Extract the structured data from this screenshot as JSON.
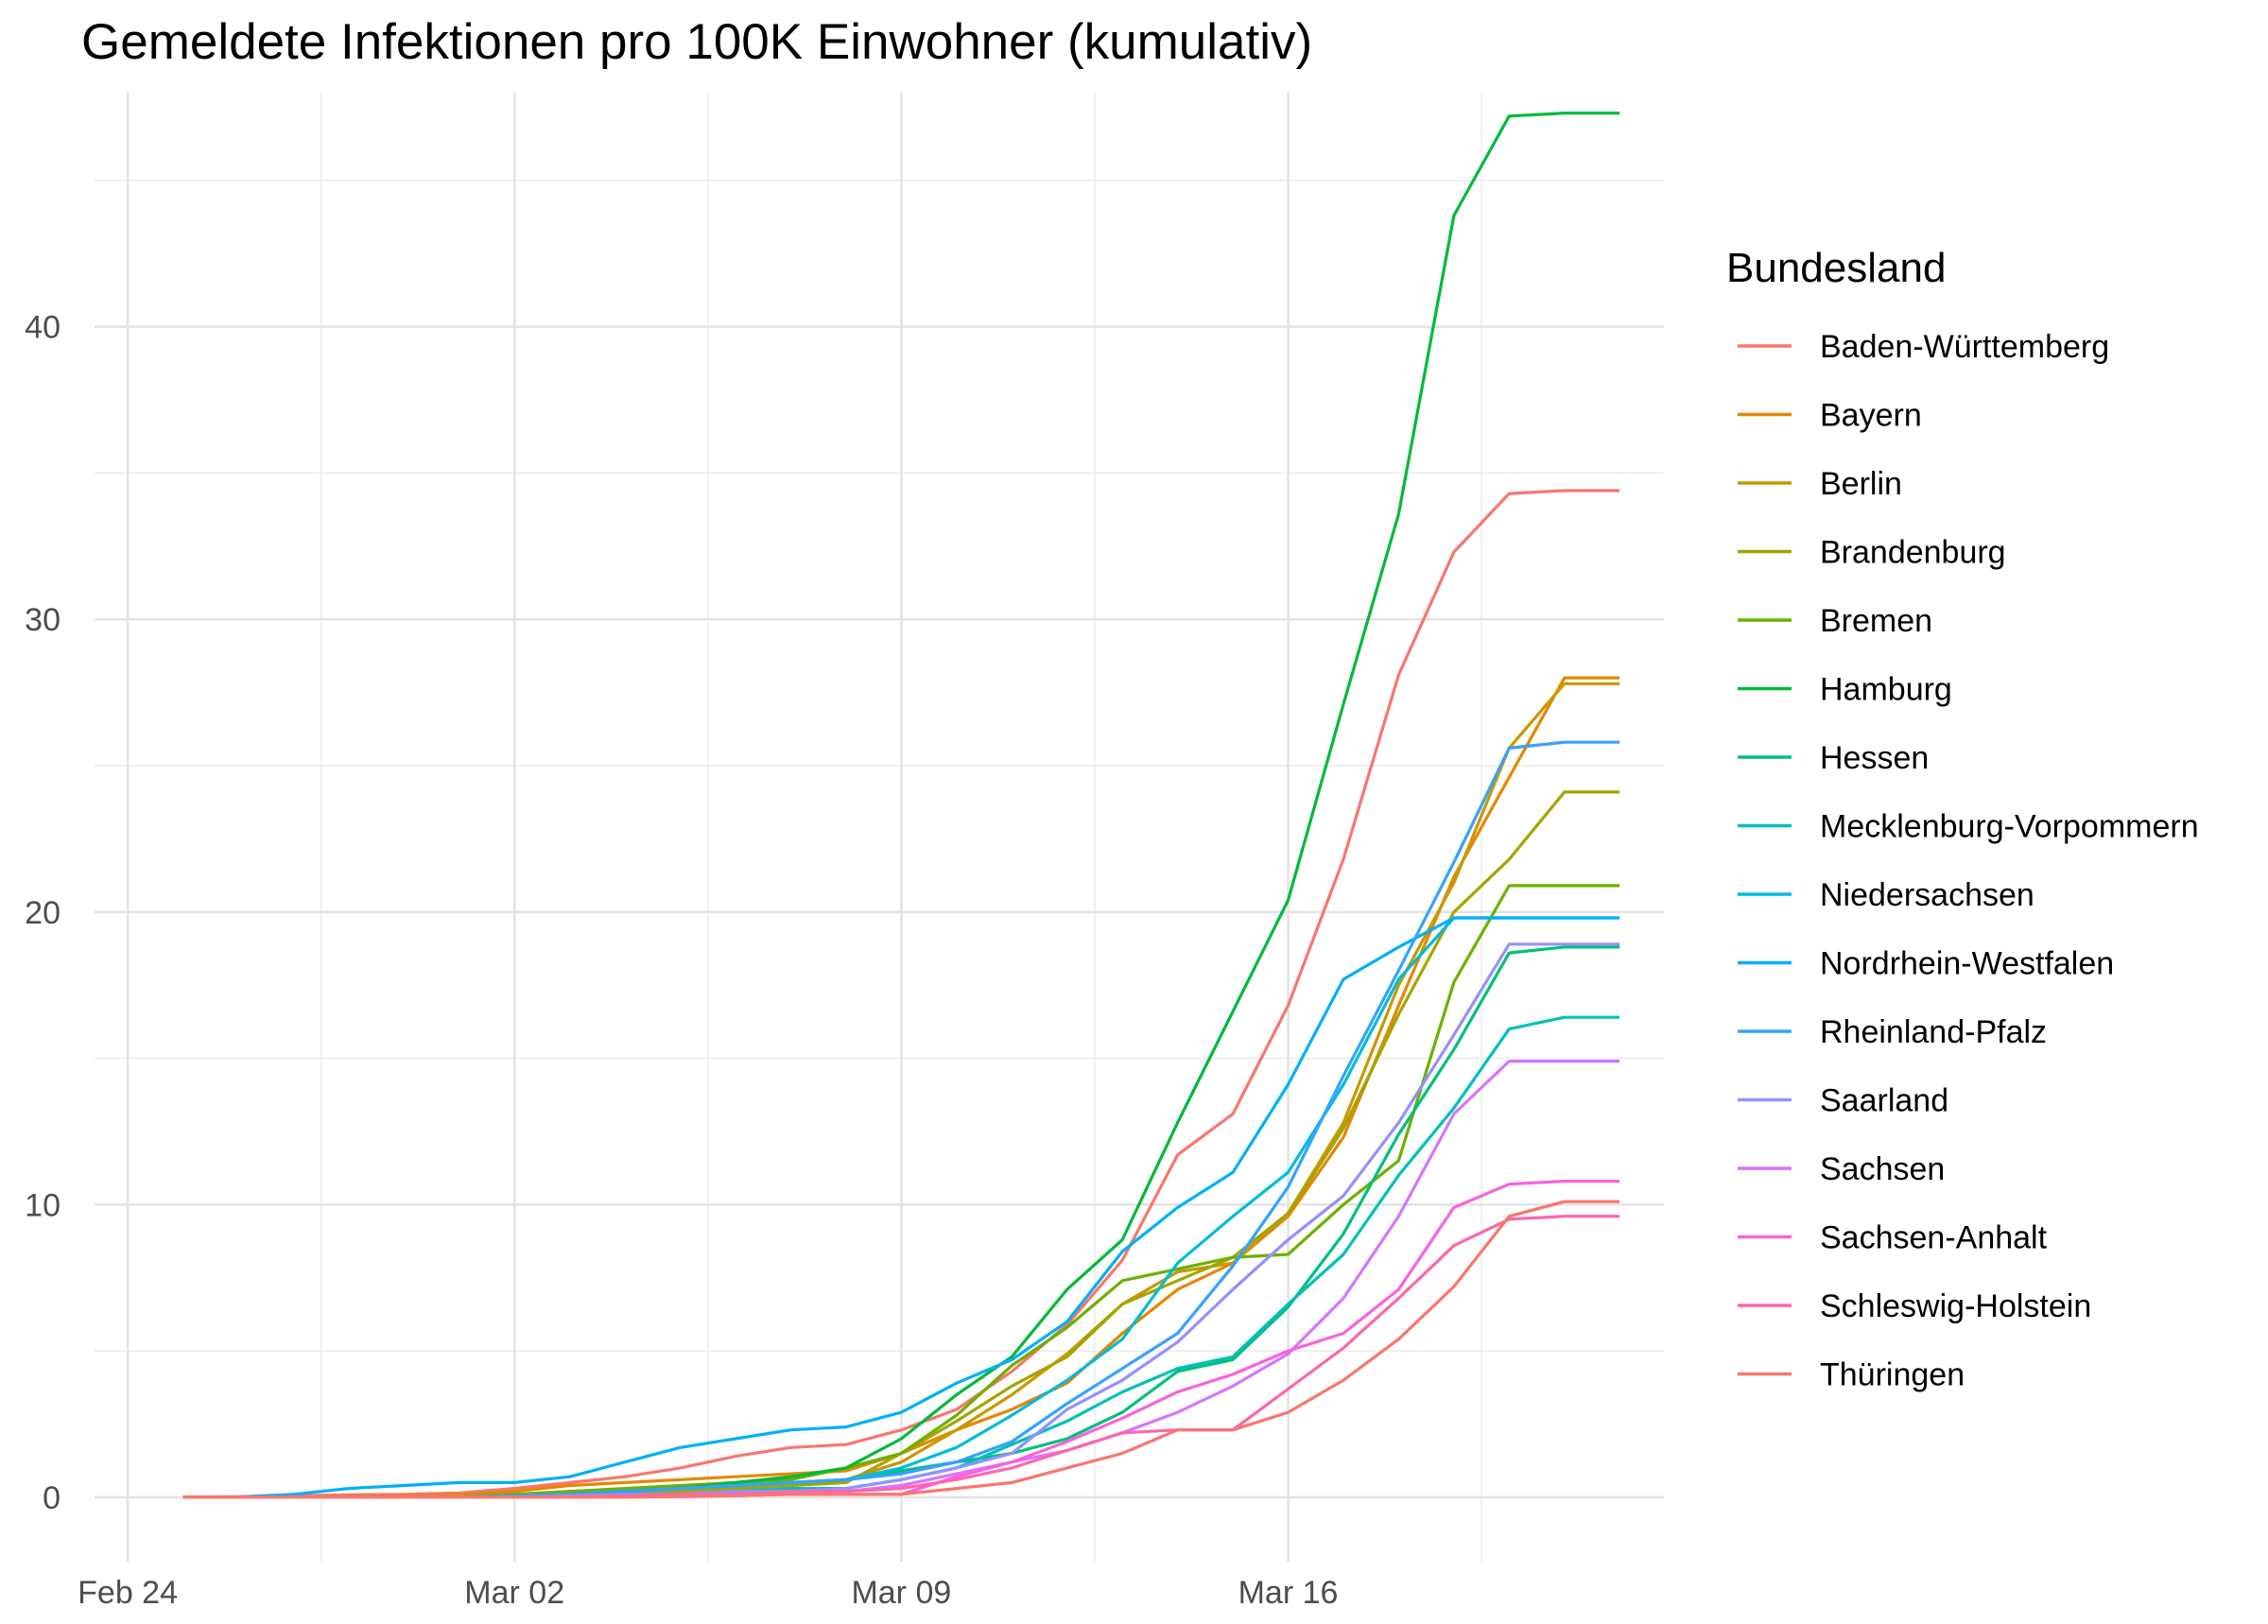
{
  "chart_data": {
    "type": "line",
    "title": "Gemeldete Infektionen pro 100K Einwohner (kumulativ)",
    "xlabel": "",
    "ylabel": "",
    "x_ticks": [
      "Feb 24",
      "Mar 02",
      "Mar 09",
      "Mar 16"
    ],
    "y_ticks": [
      "0",
      "10",
      "20",
      "30",
      "40"
    ],
    "xlim": [
      "2020-02-24",
      "2020-03-22"
    ],
    "ylim": [
      0,
      48
    ],
    "grid": true,
    "legend": {
      "title": "Bundesland",
      "position": "right"
    },
    "x": [
      "2020-02-25",
      "2020-02-26",
      "2020-02-27",
      "2020-02-28",
      "2020-02-29",
      "2020-03-01",
      "2020-03-02",
      "2020-03-03",
      "2020-03-04",
      "2020-03-05",
      "2020-03-06",
      "2020-03-07",
      "2020-03-08",
      "2020-03-09",
      "2020-03-10",
      "2020-03-11",
      "2020-03-12",
      "2020-03-13",
      "2020-03-14",
      "2020-03-15",
      "2020-03-16",
      "2020-03-17",
      "2020-03-18",
      "2020-03-19",
      "2020-03-20",
      "2020-03-21",
      "2020-03-22"
    ],
    "series": [
      {
        "name": "Baden-Württemberg",
        "color": "#F8766D",
        "values": [
          0,
          0.02,
          0.05,
          0.08,
          0.1,
          0.15,
          0.3,
          0.5,
          0.7,
          1.0,
          1.4,
          1.7,
          1.8,
          2.3,
          3.0,
          4.3,
          5.9,
          8.1,
          11.7,
          13.1,
          16.8,
          21.8,
          28.1,
          32.3,
          34.3,
          34.4,
          34.4
        ]
      },
      {
        "name": "Bayern",
        "color": "#E58700",
        "values": [
          0,
          0.01,
          0.02,
          0.03,
          0.04,
          0.08,
          0.2,
          0.4,
          0.5,
          0.6,
          0.7,
          0.8,
          0.9,
          1.5,
          2.3,
          3.0,
          3.9,
          5.6,
          7.1,
          8.0,
          9.6,
          12.3,
          16.8,
          21.2,
          24.6,
          28.0,
          28.0
        ]
      },
      {
        "name": "Berlin",
        "color": "#C99800",
        "values": [
          0,
          0,
          0,
          0,
          0,
          0.05,
          0.1,
          0.2,
          0.2,
          0.3,
          0.4,
          0.5,
          0.6,
          1.2,
          2.3,
          3.5,
          4.9,
          6.6,
          7.7,
          8.0,
          9.7,
          12.8,
          17.5,
          21.0,
          25.6,
          27.8,
          27.8
        ]
      },
      {
        "name": "Brandenburg",
        "color": "#A3A500",
        "values": [
          0,
          0,
          0,
          0,
          0,
          0,
          0.04,
          0.1,
          0.1,
          0.2,
          0.3,
          0.4,
          0.5,
          1.5,
          2.6,
          3.8,
          4.8,
          6.6,
          7.4,
          8.2,
          9.7,
          12.6,
          16.5,
          20.0,
          21.8,
          24.1,
          24.1
        ]
      },
      {
        "name": "Bremen",
        "color": "#6BB100",
        "values": [
          0,
          0,
          0,
          0,
          0,
          0,
          0.1,
          0.2,
          0.3,
          0.4,
          0.5,
          0.6,
          1.0,
          1.5,
          2.8,
          4.5,
          5.8,
          7.4,
          7.8,
          8.2,
          8.3,
          10.0,
          11.5,
          17.6,
          20.9,
          20.9,
          20.9
        ]
      },
      {
        "name": "Hamburg",
        "color": "#00BA38",
        "values": [
          0,
          0,
          0,
          0,
          0,
          0,
          0.05,
          0.1,
          0.2,
          0.3,
          0.5,
          0.7,
          1.0,
          2.0,
          3.5,
          4.8,
          7.1,
          8.8,
          12.8,
          16.6,
          20.4,
          27.1,
          33.6,
          43.8,
          47.2,
          47.3,
          47.3
        ]
      },
      {
        "name": "Hessen",
        "color": "#00BF7D",
        "values": [
          0,
          0,
          0,
          0,
          0,
          0,
          0.03,
          0.1,
          0.2,
          0.3,
          0.4,
          0.5,
          0.6,
          0.9,
          1.2,
          1.5,
          2.0,
          2.9,
          4.3,
          4.7,
          6.5,
          9.0,
          12.4,
          15.3,
          18.6,
          18.8,
          18.8
        ]
      },
      {
        "name": "Mecklenburg-Vorpommern",
        "color": "#00C0B8",
        "values": [
          0,
          0,
          0,
          0,
          0,
          0,
          0,
          0.05,
          0.1,
          0.1,
          0.2,
          0.3,
          0.3,
          0.6,
          1.0,
          1.8,
          2.6,
          3.6,
          4.4,
          4.8,
          6.6,
          8.3,
          11.0,
          13.3,
          16.0,
          16.4,
          16.4
        ]
      },
      {
        "name": "Niedersachsen",
        "color": "#00BCD8",
        "values": [
          0,
          0,
          0,
          0,
          0,
          0,
          0.05,
          0.1,
          0.2,
          0.3,
          0.4,
          0.5,
          0.6,
          1.0,
          1.7,
          2.8,
          4.0,
          5.4,
          8.0,
          9.6,
          11.1,
          14.1,
          17.7,
          19.8,
          19.8,
          19.8,
          19.8
        ]
      },
      {
        "name": "Nordrhein-Westfalen",
        "color": "#00B0F6",
        "values": [
          0,
          0.01,
          0.1,
          0.3,
          0.4,
          0.5,
          0.5,
          0.7,
          1.2,
          1.7,
          2.0,
          2.3,
          2.4,
          2.9,
          3.9,
          4.7,
          6.0,
          8.4,
          9.9,
          11.1,
          14.1,
          17.7,
          18.8,
          19.8,
          19.8,
          19.8,
          19.8
        ]
      },
      {
        "name": "Rheinland-Pfalz",
        "color": "#35A2FF",
        "values": [
          0,
          0,
          0,
          0,
          0,
          0,
          0.05,
          0.1,
          0.2,
          0.3,
          0.4,
          0.5,
          0.6,
          0.8,
          1.2,
          1.9,
          3.2,
          4.4,
          5.6,
          7.9,
          10.6,
          14.4,
          18.0,
          21.7,
          25.6,
          25.8,
          25.8
        ]
      },
      {
        "name": "Saarland",
        "color": "#9590FF",
        "values": [
          0,
          0,
          0,
          0,
          0,
          0,
          0,
          0.05,
          0.1,
          0.1,
          0.2,
          0.2,
          0.3,
          0.6,
          1.0,
          1.5,
          3.0,
          4.0,
          5.3,
          7.1,
          8.8,
          10.3,
          12.8,
          15.8,
          18.9,
          18.9,
          18.9
        ]
      },
      {
        "name": "Sachsen",
        "color": "#D575FE",
        "values": [
          0,
          0,
          0,
          0,
          0,
          0,
          0,
          0.02,
          0.05,
          0.1,
          0.1,
          0.2,
          0.2,
          0.4,
          0.8,
          1.2,
          1.6,
          2.2,
          2.9,
          3.8,
          4.9,
          6.8,
          9.6,
          13.1,
          14.9,
          14.9,
          14.9
        ]
      },
      {
        "name": "Sachsen-Anhalt",
        "color": "#F962DD",
        "values": [
          0,
          0,
          0,
          0,
          0,
          0,
          0,
          0,
          0.02,
          0.05,
          0.05,
          0.1,
          0.1,
          0.1,
          0.7,
          1.2,
          1.9,
          2.7,
          3.6,
          4.2,
          5.0,
          5.6,
          7.1,
          9.9,
          10.7,
          10.8,
          10.8
        ]
      },
      {
        "name": "Schleswig-Holstein",
        "color": "#FF65AC",
        "values": [
          0,
          0,
          0,
          0,
          0,
          0,
          0,
          0.02,
          0.05,
          0.1,
          0.1,
          0.2,
          0.2,
          0.3,
          0.6,
          1.0,
          1.6,
          2.2,
          2.3,
          2.3,
          3.7,
          5.1,
          6.8,
          8.6,
          9.5,
          9.6,
          9.6
        ]
      },
      {
        "name": "Thüringen",
        "color": "#F8766D",
        "values": [
          0,
          0,
          0,
          0,
          0,
          0,
          0,
          0,
          0,
          0.02,
          0.05,
          0.1,
          0.1,
          0.1,
          0.3,
          0.5,
          1.0,
          1.5,
          2.3,
          2.3,
          2.9,
          4.0,
          5.4,
          7.2,
          9.6,
          10.1,
          10.1
        ]
      }
    ]
  }
}
